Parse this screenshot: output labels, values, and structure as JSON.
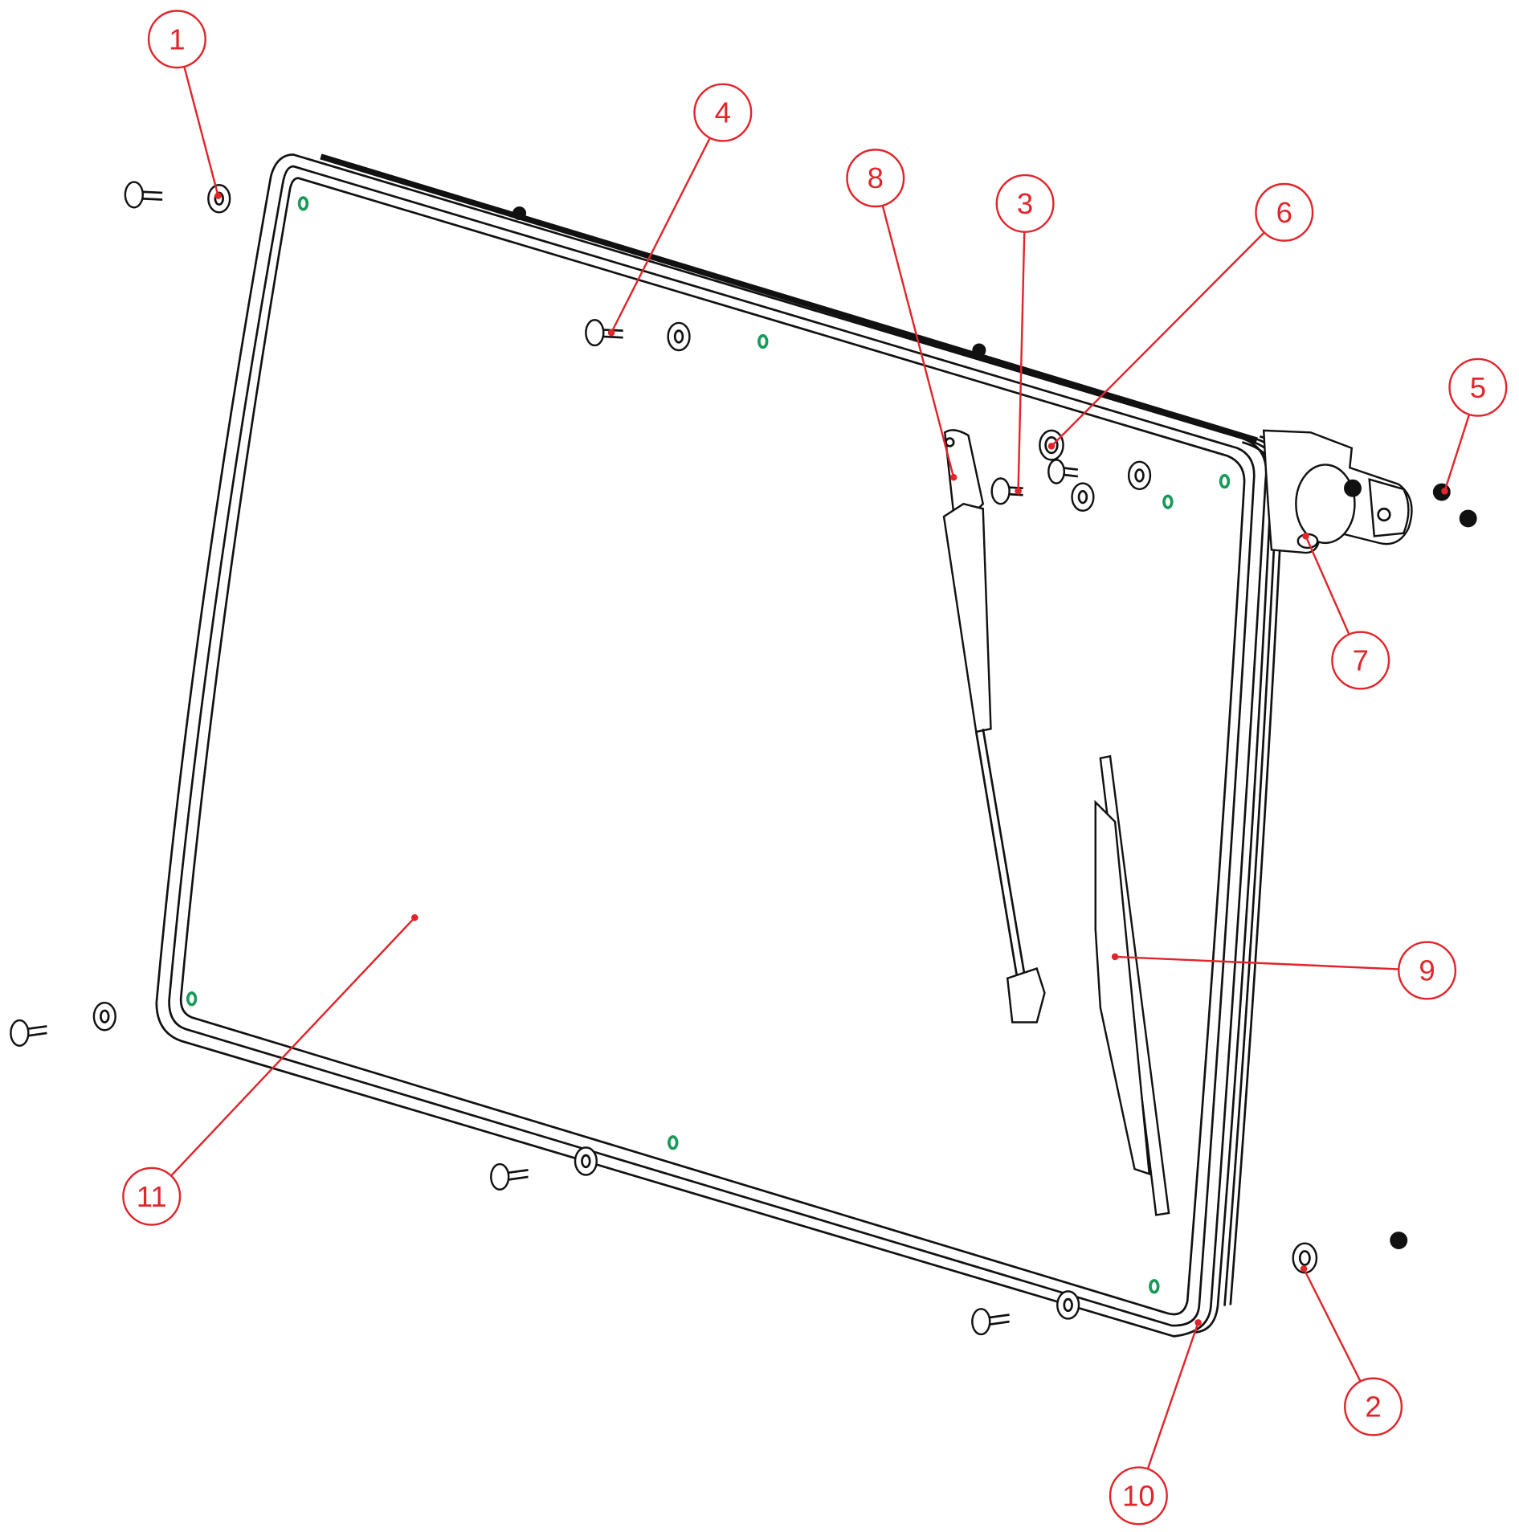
{
  "callouts": [
    {
      "label": "1"
    },
    {
      "label": "2"
    },
    {
      "label": "3"
    },
    {
      "label": "4"
    },
    {
      "label": "5"
    },
    {
      "label": "6"
    },
    {
      "label": "7"
    },
    {
      "label": "8"
    },
    {
      "label": "9"
    },
    {
      "label": "10"
    },
    {
      "label": "11"
    }
  ]
}
